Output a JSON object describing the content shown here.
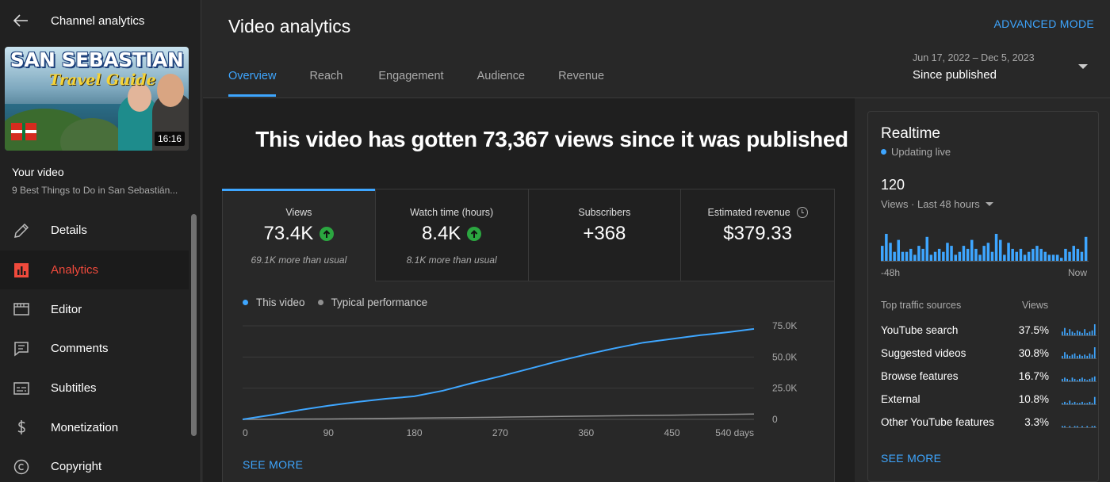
{
  "colors": {
    "accent": "#3ea6ff",
    "active_nav": "#f04a3c",
    "up_green": "#2ba640",
    "series_this_video": "#3ea6ff",
    "series_typical": "#909090"
  },
  "sidebar": {
    "header_title": "Channel analytics",
    "thumbnail": {
      "title_line1": "SAN SEBASTIAN",
      "title_line2": "Travel Guide",
      "duration": "16:16"
    },
    "your_video_label": "Your video",
    "video_title": "9 Best Things to Do in San Sebastián...",
    "items": [
      {
        "label": "Details",
        "icon": "pencil-icon"
      },
      {
        "label": "Analytics",
        "icon": "analytics-icon",
        "active": true
      },
      {
        "label": "Editor",
        "icon": "clapperboard-icon"
      },
      {
        "label": "Comments",
        "icon": "comment-icon"
      },
      {
        "label": "Subtitles",
        "icon": "subtitles-icon"
      },
      {
        "label": "Monetization",
        "icon": "dollar-icon"
      },
      {
        "label": "Copyright",
        "icon": "copyright-icon"
      }
    ]
  },
  "header": {
    "title": "Video analytics",
    "advanced_mode": "ADVANCED MODE",
    "tabs": [
      "Overview",
      "Reach",
      "Engagement",
      "Audience",
      "Revenue"
    ],
    "active_tab": "Overview",
    "date_range": {
      "dates": "Jun 17, 2022 – Dec 5, 2023",
      "label": "Since published"
    }
  },
  "main": {
    "headline": "This video has gotten 73,367 views since it was published",
    "metrics": [
      {
        "label": "Views",
        "value": "73.4K",
        "sub": "69.1K more than usual",
        "trend": "up"
      },
      {
        "label": "Watch time (hours)",
        "value": "8.4K",
        "sub": "8.1K more than usual",
        "trend": "up"
      },
      {
        "label": "Subscribers",
        "value": "+368",
        "sub": "",
        "trend": ""
      },
      {
        "label": "Estimated revenue",
        "value": "$379.33",
        "sub": "",
        "trend": ""
      }
    ],
    "legend": [
      "This video",
      "Typical performance"
    ],
    "see_more": "SEE MORE"
  },
  "chart_data": {
    "type": "line",
    "x_tick_labels": [
      "0",
      "90",
      "180",
      "270",
      "360",
      "450",
      "540 days"
    ],
    "y_tick_labels": [
      "0",
      "25.0K",
      "50.0K",
      "75.0K"
    ],
    "ylim": [
      0,
      75000
    ],
    "xlim": [
      0,
      536
    ],
    "grid": true,
    "legend_position": "top-left",
    "series": [
      {
        "name": "This video",
        "color": "#3ea6ff",
        "x": [
          0,
          30,
          60,
          90,
          120,
          150,
          180,
          210,
          240,
          270,
          300,
          330,
          360,
          390,
          420,
          450,
          480,
          510,
          536
        ],
        "y": [
          0,
          3500,
          7500,
          11000,
          14000,
          16500,
          18500,
          23000,
          29000,
          34500,
          40500,
          46500,
          52000,
          57000,
          61500,
          64500,
          67500,
          70000,
          72500
        ]
      },
      {
        "name": "Typical performance",
        "color": "#909090",
        "x": [
          0,
          90,
          180,
          270,
          360,
          450,
          536
        ],
        "y": [
          0,
          300,
          1000,
          1800,
          2600,
          3400,
          4300
        ]
      }
    ]
  },
  "realtime": {
    "title": "Realtime",
    "status": "Updating live",
    "count": "120",
    "period": "Views · Last 48 hours",
    "axis_left": "-48h",
    "axis_right": "Now",
    "bars": [
      5,
      9,
      6,
      3,
      7,
      3,
      3,
      4,
      2,
      5,
      4,
      8,
      2,
      3,
      4,
      3,
      6,
      5,
      2,
      3,
      5,
      4,
      7,
      4,
      2,
      5,
      6,
      3,
      9,
      7,
      2,
      6,
      4,
      3,
      4,
      2,
      3,
      4,
      5,
      4,
      3,
      2,
      2,
      2,
      1,
      4,
      3,
      5,
      4,
      3,
      8
    ],
    "sources_header": "Top traffic sources",
    "views_header": "Views",
    "sources": [
      {
        "name": "YouTube search",
        "pct": "37.5%",
        "spark": [
          3,
          6,
          2,
          5,
          3,
          2,
          4,
          3,
          2,
          5,
          2,
          3,
          4,
          9
        ]
      },
      {
        "name": "Suggested videos",
        "pct": "30.8%",
        "spark": [
          2,
          5,
          3,
          2,
          3,
          4,
          2,
          3,
          2,
          3,
          2,
          4,
          3,
          9
        ]
      },
      {
        "name": "Browse features",
        "pct": "16.7%",
        "spark": [
          2,
          3,
          2,
          1,
          3,
          2,
          1,
          2,
          3,
          2,
          1,
          2,
          3,
          4
        ]
      },
      {
        "name": "External",
        "pct": "10.8%",
        "spark": [
          1,
          2,
          1,
          3,
          1,
          2,
          1,
          1,
          2,
          1,
          1,
          2,
          1,
          6
        ]
      },
      {
        "name": "Other YouTube features",
        "pct": "3.3%",
        "spark": [
          1,
          1,
          0,
          1,
          0,
          1,
          1,
          0,
          1,
          0,
          1,
          0,
          1,
          1
        ]
      }
    ],
    "see_more": "SEE MORE"
  }
}
